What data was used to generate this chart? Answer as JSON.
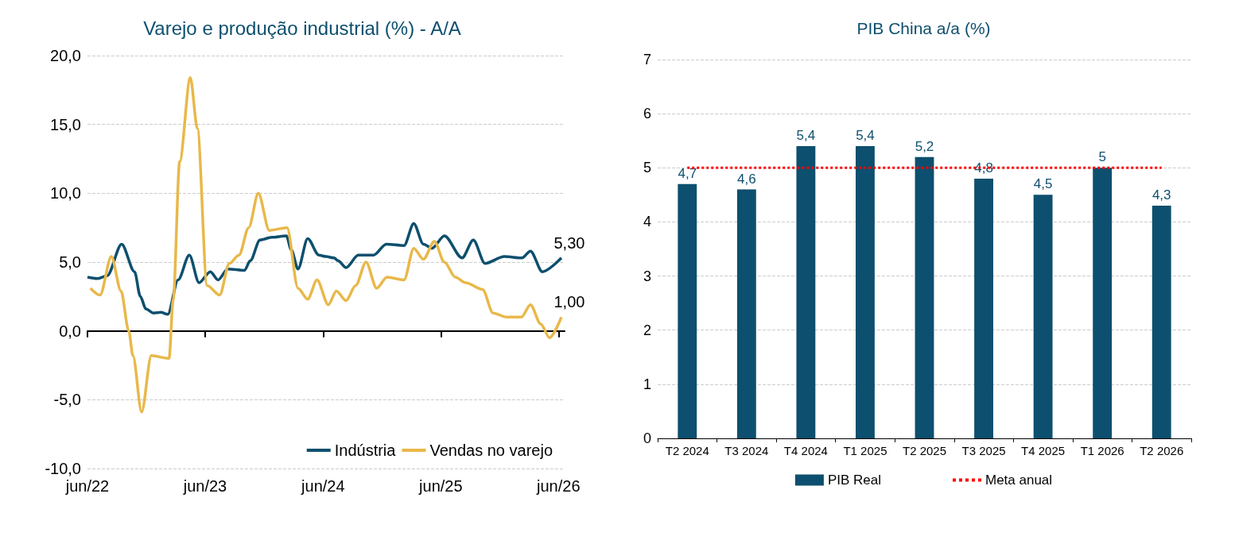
{
  "chart_data": [
    {
      "type": "line",
      "title": "Varejo e produção industrial (%) - A/A",
      "legend": "bottom right",
      "grid": "y",
      "line_style": "solid",
      "xlim": [
        "2022-06-01",
        "2026-06-20"
      ],
      "xticks": [
        {
          "value": "2022-06-01",
          "label": "jun/22"
        },
        {
          "value": "2023-06-01",
          "label": "jun/23"
        },
        {
          "value": "2024-06-01",
          "label": "jun/24"
        },
        {
          "value": "2025-06-01",
          "label": "jun/25"
        },
        {
          "value": "2026-06-01",
          "label": "jun/26"
        }
      ],
      "ylim": [
        -10,
        20
      ],
      "yticks": [
        {
          "value": -10,
          "label": "-10,0"
        },
        {
          "value": -5,
          "label": "-5,0"
        },
        {
          "value": 0,
          "label": "0,0"
        },
        {
          "value": 5,
          "label": "5,0"
        },
        {
          "value": 10,
          "label": "10,0"
        },
        {
          "value": 15,
          "label": "15,0"
        },
        {
          "value": 20,
          "label": "20,0"
        }
      ],
      "series": [
        {
          "name": "Indústria",
          "color": "#0d4f6e",
          "x": [
            "2022-06-01",
            "2022-07-01",
            "2022-08-01",
            "2022-09-15",
            "2022-10-25",
            "2022-11-12",
            "2022-11-29",
            "2022-12-23",
            "2023-01-15",
            "2023-02-05",
            "2023-03-09",
            "2023-04-13",
            "2023-05-13",
            "2023-06-17",
            "2023-07-11",
            "2023-08-10",
            "2023-10-01",
            "2023-10-19",
            "2023-11-18",
            "2023-12-25",
            "2024-02-08",
            "2024-02-23",
            "2024-03-15",
            "2024-04-14",
            "2024-05-19",
            "2024-06-10",
            "2024-07-05",
            "2024-07-17",
            "2024-08-11",
            "2024-09-18",
            "2024-11-04",
            "2024-12-14",
            "2025-02-07",
            "2025-03-09",
            "2025-04-08",
            "2025-05-05",
            "2025-06-12",
            "2025-08-06",
            "2025-09-10",
            "2025-10-16",
            "2025-12-15",
            "2026-02-08",
            "2026-03-06",
            "2026-04-12",
            "2026-06-10"
          ],
          "values": [
            3.9,
            3.8,
            4.0,
            6.3,
            4.3,
            2.5,
            1.6,
            1.3,
            1.35,
            1.2,
            3.7,
            5.5,
            3.5,
            4.3,
            3.7,
            4.5,
            4.4,
            5.1,
            6.6,
            6.8,
            6.9,
            5.9,
            4.5,
            6.7,
            5.5,
            5.4,
            5.3,
            5.1,
            4.6,
            5.5,
            5.5,
            6.3,
            6.2,
            7.8,
            6.3,
            6.0,
            6.9,
            5.3,
            6.6,
            4.9,
            5.4,
            5.3,
            5.8,
            4.3,
            5.3
          ],
          "value_labels": [
            null,
            null,
            null,
            null,
            null,
            null,
            null,
            null,
            null,
            null,
            null,
            null,
            null,
            null,
            null,
            null,
            null,
            null,
            null,
            null,
            null,
            null,
            null,
            null,
            null,
            null,
            null,
            null,
            null,
            null,
            null,
            null,
            null,
            null,
            null,
            null,
            null,
            null,
            null,
            null,
            null,
            null,
            null,
            null,
            "5,30"
          ]
        },
        {
          "name": "Vendas no varejo",
          "color": "#e8b84a",
          "x": [
            "2022-06-10",
            "2022-07-10",
            "2022-08-14",
            "2022-09-13",
            "2022-10-07",
            "2022-10-20",
            "2022-11-16",
            "2022-12-16",
            "2023-02-09",
            "2023-02-22",
            "2023-03-14",
            "2023-04-16",
            "2023-05-08",
            "2023-06-07",
            "2023-07-16",
            "2023-08-15",
            "2023-09-14",
            "2023-10-14",
            "2023-11-13",
            "2023-12-17",
            "2024-02-10",
            "2024-03-15",
            "2024-04-14",
            "2024-05-13",
            "2024-06-17",
            "2024-07-12",
            "2024-08-11",
            "2024-09-10",
            "2024-10-12",
            "2024-11-14",
            "2024-12-16",
            "2025-02-07",
            "2025-03-09",
            "2025-04-08",
            "2025-05-12",
            "2025-06-12",
            "2025-07-16",
            "2025-08-17",
            "2025-10-09",
            "2025-11-10",
            "2025-12-22",
            "2026-02-06",
            "2026-03-06",
            "2026-04-07",
            "2026-05-04",
            "2026-06-10"
          ],
          "values": [
            3.1,
            2.6,
            5.4,
            2.9,
            0.0,
            -1.8,
            -5.9,
            -1.8,
            -2.0,
            2.3,
            12.3,
            18.4,
            14.7,
            3.3,
            2.6,
            4.9,
            5.5,
            7.5,
            10.0,
            7.3,
            7.5,
            3.1,
            2.3,
            3.7,
            1.9,
            2.9,
            2.2,
            3.3,
            5.0,
            3.1,
            3.9,
            3.7,
            6.0,
            5.2,
            6.5,
            5.0,
            3.9,
            3.5,
            3.0,
            1.3,
            1.0,
            1.0,
            1.9,
            0.5,
            -0.5,
            1.0
          ],
          "value_labels": [
            null,
            null,
            null,
            null,
            null,
            null,
            null,
            null,
            null,
            null,
            null,
            null,
            null,
            null,
            null,
            null,
            null,
            null,
            null,
            null,
            null,
            null,
            null,
            null,
            null,
            null,
            null,
            null,
            null,
            null,
            null,
            null,
            null,
            null,
            null,
            null,
            null,
            null,
            null,
            null,
            null,
            null,
            null,
            null,
            null,
            "1,00"
          ]
        }
      ]
    },
    {
      "type": "bar",
      "title": "PIB China a/a (%)",
      "legend": "bottom",
      "grid": "y",
      "categories": [
        "T2 2024",
        "T3 2024",
        "T4 2024",
        "T1 2025",
        "T2 2025",
        "T3 2025",
        "T4 2025",
        "T1 2026",
        "T2 2026"
      ],
      "ylim": [
        0,
        7
      ],
      "yticks": [
        0,
        1,
        2,
        3,
        4,
        5,
        6,
        7
      ],
      "series": [
        {
          "name": "PIB Real",
          "color": "#0d4f6e",
          "values": [
            4.7,
            4.6,
            5.4,
            5.4,
            5.2,
            4.8,
            4.5,
            5,
            4.3
          ],
          "value_labels": [
            "4,7",
            "4,6",
            "5,4",
            "5,4",
            "5,2",
            "4,8",
            "4,5",
            "5",
            "4,3"
          ]
        }
      ],
      "ref_lines": [
        {
          "axis": "y",
          "value": 5,
          "label": "Meta anual",
          "color": "#ff0000",
          "line_style": "dotted"
        }
      ]
    }
  ]
}
